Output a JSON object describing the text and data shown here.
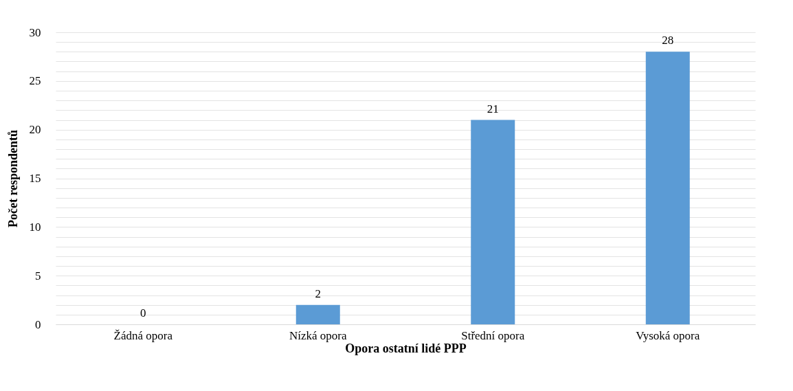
{
  "chart_data": {
    "type": "bar",
    "xlabel": "Opora ostatní lidé PPP",
    "ylabel": "Počet respondentů",
    "categories": [
      "Žádná opora",
      "Nízká opora",
      "Střední opora",
      "Vysoká opora"
    ],
    "values": [
      0,
      2,
      21,
      28
    ],
    "color": "#5b9bd5",
    "data_labels": true,
    "grid": "y",
    "legend": false,
    "ylim": [
      0,
      30
    ],
    "yticks": [
      0,
      {
        "value": 1,
        "label": null
      },
      {
        "value": 2,
        "label": null
      },
      {
        "value": 3,
        "label": null
      },
      {
        "value": 4,
        "label": null
      },
      5,
      {
        "value": 6,
        "label": null
      },
      {
        "value": 7,
        "label": null
      },
      {
        "value": 8,
        "label": null
      },
      {
        "value": 9,
        "label": null
      },
      10,
      {
        "value": 11,
        "label": null
      },
      {
        "value": 12,
        "label": null
      },
      {
        "value": 13,
        "label": null
      },
      {
        "value": 14,
        "label": null
      },
      15,
      {
        "value": 16,
        "label": null
      },
      {
        "value": 17,
        "label": null
      },
      {
        "value": 18,
        "label": null
      },
      {
        "value": 19,
        "label": null
      },
      20,
      {
        "value": 21,
        "label": null
      },
      {
        "value": 22,
        "label": null
      },
      {
        "value": 23,
        "label": null
      },
      {
        "value": 24,
        "label": null
      },
      25,
      {
        "value": 26,
        "label": null
      },
      {
        "value": 27,
        "label": null
      },
      {
        "value": 28,
        "label": null
      },
      {
        "value": 29,
        "label": null
      },
      30
    ]
  }
}
